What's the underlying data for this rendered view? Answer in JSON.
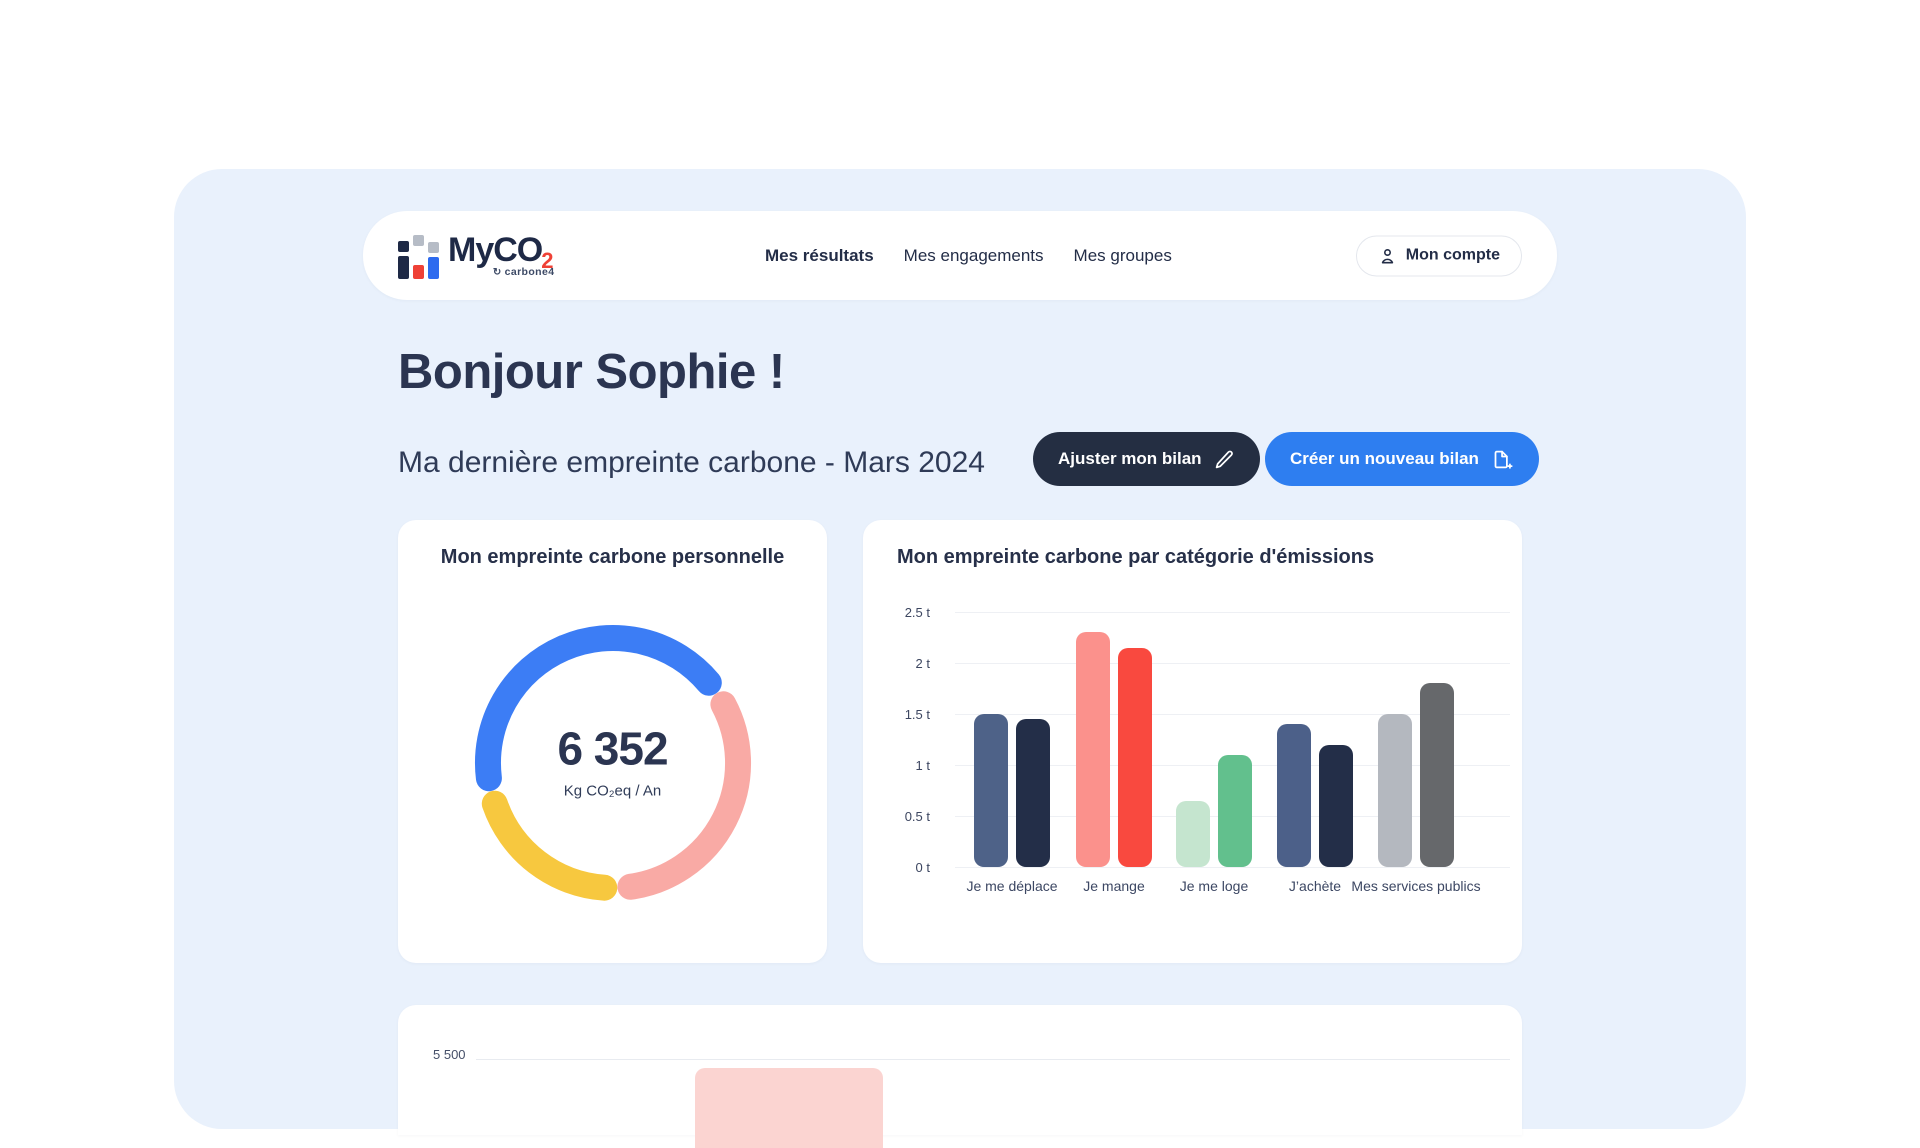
{
  "brand": {
    "name_main": "MyCO",
    "name_sub": "2",
    "tagline": "carbone4"
  },
  "nav": {
    "items": [
      {
        "label": "Mes résultats",
        "active": true
      },
      {
        "label": "Mes engagements",
        "active": false
      },
      {
        "label": "Mes groupes",
        "active": false
      }
    ],
    "account_label": "Mon compte"
  },
  "greeting": {
    "title": "Bonjour Sophie !",
    "subtitle": "Ma dernière empreinte carbone - Mars 2024"
  },
  "actions": {
    "adjust_label": "Ajuster mon bilan",
    "create_label": "Créer un nouveau bilan"
  },
  "colors": {
    "background": "#e9f1fc",
    "primary_blue": "#2e7ef0",
    "dark_navy": "#242e42",
    "logo_red": "#ef4136",
    "heading_navy": "#2b3551"
  },
  "cards": {
    "personal_title": "Mon empreinte carbone personnelle",
    "categories_title": "Mon empreinte carbone par catégorie d'émissions"
  },
  "chart_data": [
    {
      "type": "pie",
      "subtype": "donut",
      "title": "Mon empreinte carbone personnelle",
      "center_value": "6 352",
      "center_unit": "Kg CO₂eq / An",
      "segments": [
        {
          "name": "donut-segment-blue",
          "color": "#3c7df5",
          "start_deg": -97,
          "end_deg": 50
        },
        {
          "name": "donut-segment-pink",
          "color": "#f9aaa5",
          "start_deg": 62,
          "end_deg": 172
        },
        {
          "name": "donut-segment-yellow",
          "color": "#f7c83f",
          "start_deg": 184,
          "end_deg": 251
        }
      ]
    },
    {
      "type": "bar",
      "title": "Mon empreinte carbone par catégorie d'émissions",
      "categories": [
        "Je me déplace",
        "Je mange",
        "Je me loge",
        "J’achète",
        "Mes services publics"
      ],
      "series": [
        {
          "name": "serie-1",
          "values": [
            1.5,
            2.3,
            0.65,
            1.4,
            1.5
          ],
          "colors": [
            "#4e6288",
            "#fb918c",
            "#c5e5cf",
            "#4c6089",
            "#b4b8bf"
          ]
        },
        {
          "name": "serie-2",
          "values": [
            1.45,
            2.15,
            1.1,
            1.2,
            1.8
          ],
          "colors": [
            "#232e48",
            "#f9493f",
            "#62c08d",
            "#232e48",
            "#66686b"
          ]
        }
      ],
      "ylim": [
        0,
        2.5
      ],
      "yticks": [
        0,
        0.5,
        1,
        1.5,
        2,
        2.5
      ],
      "ytick_labels": [
        "0 t",
        "0.5 t",
        "1 t",
        "1.5 t",
        "2 t",
        "2.5 t"
      ],
      "grid": true,
      "legend": "none"
    },
    {
      "type": "bar",
      "partially_visible": true,
      "ytick_labels": [
        "5 500"
      ],
      "visible_bar_color": "#fbd4d1"
    }
  ]
}
